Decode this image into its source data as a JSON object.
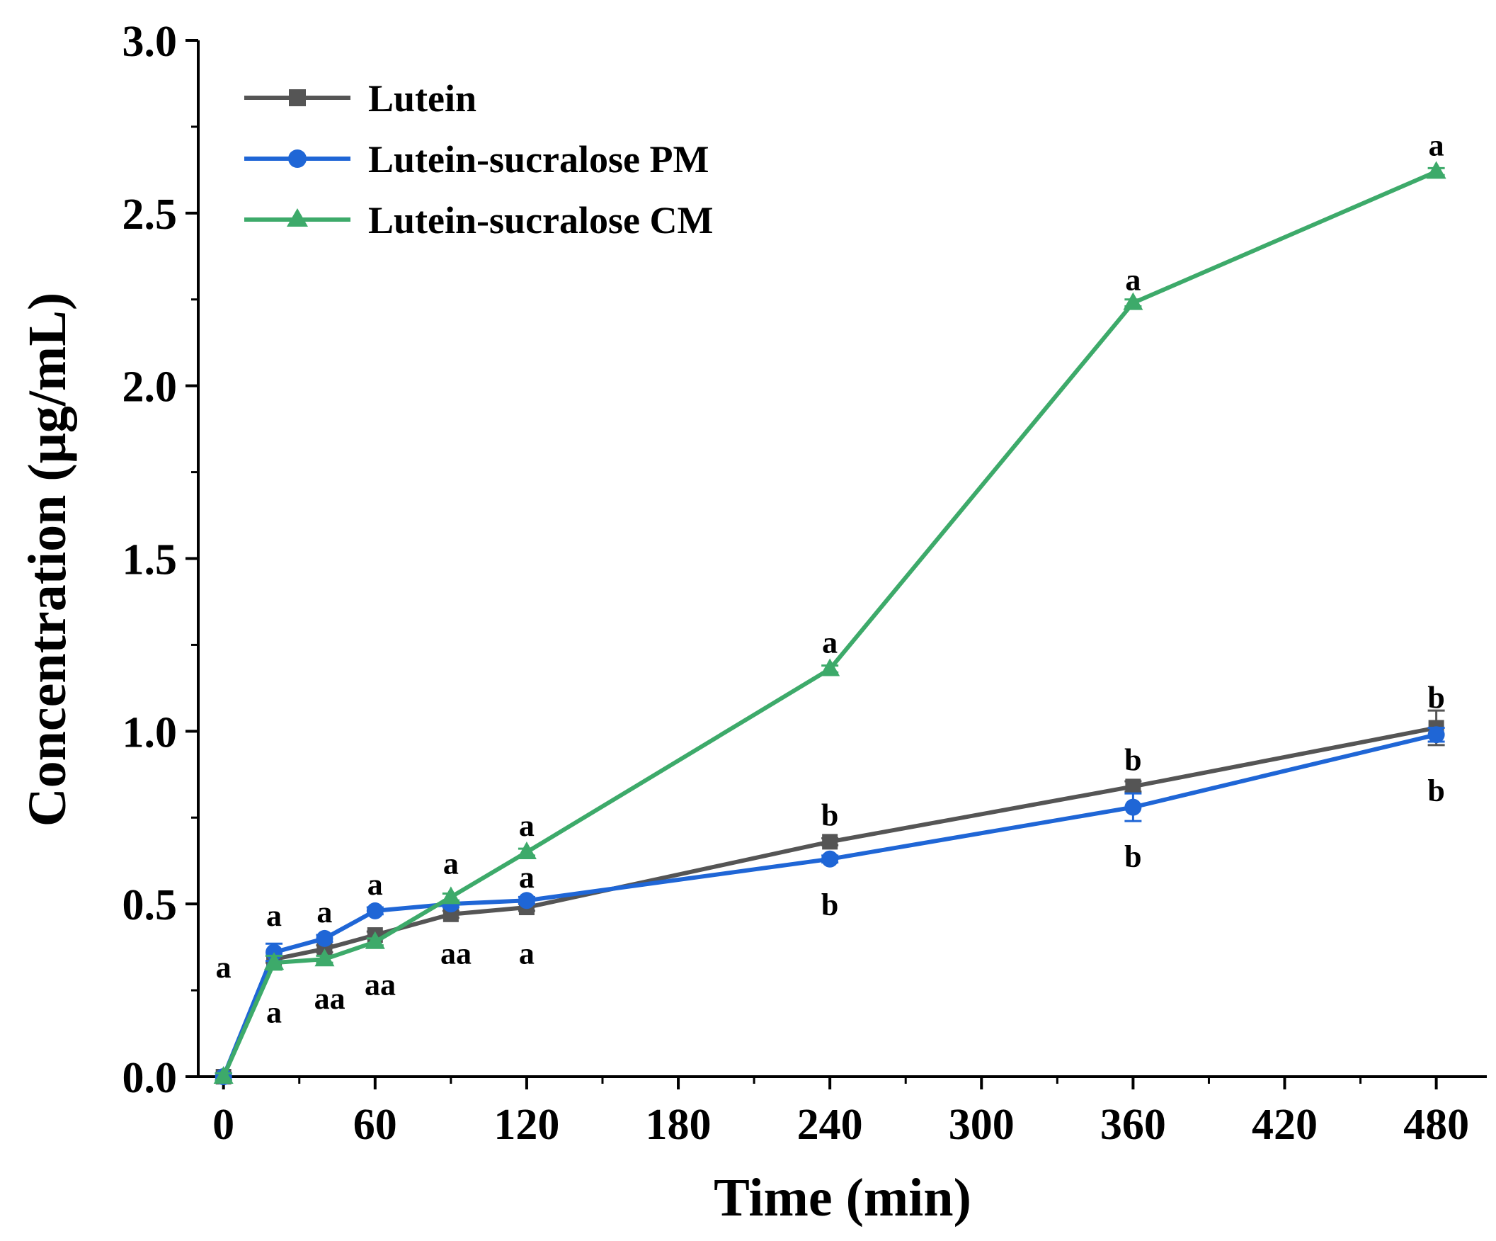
{
  "chart_data": {
    "type": "line",
    "xlabel": "Time (min)",
    "ylabel": "Concentration (μg/mL)",
    "ylim": [
      0,
      3.0
    ],
    "xlim": [
      -10,
      500
    ],
    "x_ticks": [
      0,
      60,
      120,
      180,
      240,
      300,
      360,
      420,
      480
    ],
    "x_tick_labels": [
      "0",
      "60",
      "120",
      "180",
      "240",
      "300",
      "360",
      "420",
      "480"
    ],
    "y_ticks": [
      0,
      0.5,
      1.0,
      1.5,
      2.0,
      2.5,
      3.0
    ],
    "y_tick_labels": [
      "0.0",
      "0.5",
      "1.0",
      "1.5",
      "2.0",
      "2.5",
      "3.0"
    ],
    "legend_position": "top-left",
    "series": [
      {
        "name": "Lutein",
        "color": "#555555",
        "marker": "square",
        "x": [
          0,
          20,
          40,
          60,
          90,
          120,
          240,
          360,
          480
        ],
        "y": [
          0,
          0.34,
          0.37,
          0.41,
          0.47,
          0.49,
          0.68,
          0.84,
          1.01
        ],
        "err": [
          0.01,
          0.01,
          0.01,
          0.01,
          0.01,
          0.01,
          0.01,
          0.015,
          0.05
        ],
        "sig_labels": [
          "",
          "a",
          "a",
          "a",
          "a",
          "a",
          "b",
          "b",
          "b"
        ]
      },
      {
        "name": "Lutein-sucralose PM",
        "color": "#1f66d6",
        "marker": "circle",
        "x": [
          0,
          20,
          40,
          60,
          90,
          120,
          240,
          360,
          480
        ],
        "y": [
          0,
          0.36,
          0.4,
          0.48,
          0.5,
          0.51,
          0.63,
          0.78,
          0.99
        ],
        "err": [
          0.01,
          0.025,
          0.01,
          0.01,
          0.01,
          0.01,
          0.01,
          0.04,
          0.02
        ],
        "sig_labels": [
          "",
          "a",
          "a",
          "a",
          "a",
          "a",
          "b",
          "b",
          "b"
        ]
      },
      {
        "name": "Lutein-sucralose CM",
        "color": "#3daa6a",
        "marker": "triangle",
        "x": [
          0,
          20,
          40,
          60,
          90,
          120,
          240,
          360,
          480
        ],
        "y": [
          0,
          0.33,
          0.34,
          0.39,
          0.52,
          0.65,
          1.18,
          2.24,
          2.62
        ],
        "err": [
          0.01,
          0.02,
          0.01,
          0.01,
          0.01,
          0.01,
          0.01,
          0.01,
          0.01
        ],
        "sig_labels": [
          "",
          "a",
          "a",
          "a",
          "a",
          "a",
          "a",
          "a",
          "a"
        ]
      }
    ],
    "annotations": [
      {
        "text": "a",
        "x": 0,
        "y": 0.32
      },
      {
        "text": "a",
        "x": 20,
        "y": 0.47
      },
      {
        "text": "a",
        "x": 20,
        "y": 0.19
      },
      {
        "text": "a",
        "x": 40,
        "y": 0.48
      },
      {
        "text": "aa",
        "x": 42,
        "y": 0.23
      },
      {
        "text": "a",
        "x": 60,
        "y": 0.56
      },
      {
        "text": "aa",
        "x": 62,
        "y": 0.27
      },
      {
        "text": "a",
        "x": 90,
        "y": 0.62
      },
      {
        "text": "aa",
        "x": 92,
        "y": 0.36
      },
      {
        "text": "a",
        "x": 120,
        "y": 0.73
      },
      {
        "text": "a",
        "x": 120,
        "y": 0.58
      },
      {
        "text": "a",
        "x": 120,
        "y": 0.36
      },
      {
        "text": "a",
        "x": 240,
        "y": 1.26
      },
      {
        "text": "b",
        "x": 240,
        "y": 0.76
      },
      {
        "text": "b",
        "x": 240,
        "y": 0.5
      },
      {
        "text": "a",
        "x": 360,
        "y": 2.31
      },
      {
        "text": "b",
        "x": 360,
        "y": 0.92
      },
      {
        "text": "b",
        "x": 360,
        "y": 0.64
      },
      {
        "text": "a",
        "x": 480,
        "y": 2.7
      },
      {
        "text": "b",
        "x": 480,
        "y": 1.1
      },
      {
        "text": "b",
        "x": 480,
        "y": 0.83
      }
    ]
  }
}
